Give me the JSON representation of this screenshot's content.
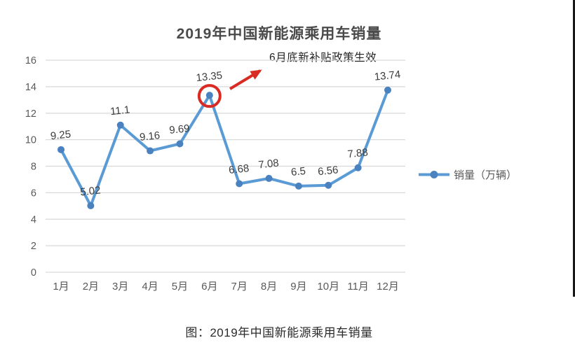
{
  "title": "2019年中国新能源乘用车销量",
  "caption": "图：2019年中国新能源乘用车销量",
  "legend": {
    "label": "销量（万辆）"
  },
  "chart_data": {
    "type": "line",
    "title": "2019年中国新能源乘用车销量",
    "categories": [
      "1月",
      "2月",
      "3月",
      "4月",
      "5月",
      "6月",
      "7月",
      "8月",
      "9月",
      "10月",
      "11月",
      "12月"
    ],
    "series": [
      {
        "name": "销量（万辆）",
        "values": [
          9.25,
          5.02,
          11.1,
          9.16,
          9.69,
          13.35,
          6.68,
          7.08,
          6.5,
          6.56,
          7.88,
          13.74
        ]
      }
    ],
    "xlabel": "",
    "ylabel": "",
    "ylim": [
      0,
      16
    ],
    "ytick_step": 2,
    "grid": true,
    "legend_position": "right",
    "colors": {
      "line": "#5b9bd5",
      "marker": "#4a82c0",
      "grid": "#d9d9d9",
      "axis_text": "#595959",
      "data_label": "#3c3c3c",
      "highlight": "#d92b23"
    },
    "annotation": {
      "text": "6月底新补贴政策生效",
      "highlight_category": "6月",
      "highlight_index": 5,
      "highlight_value": 13.35
    }
  }
}
